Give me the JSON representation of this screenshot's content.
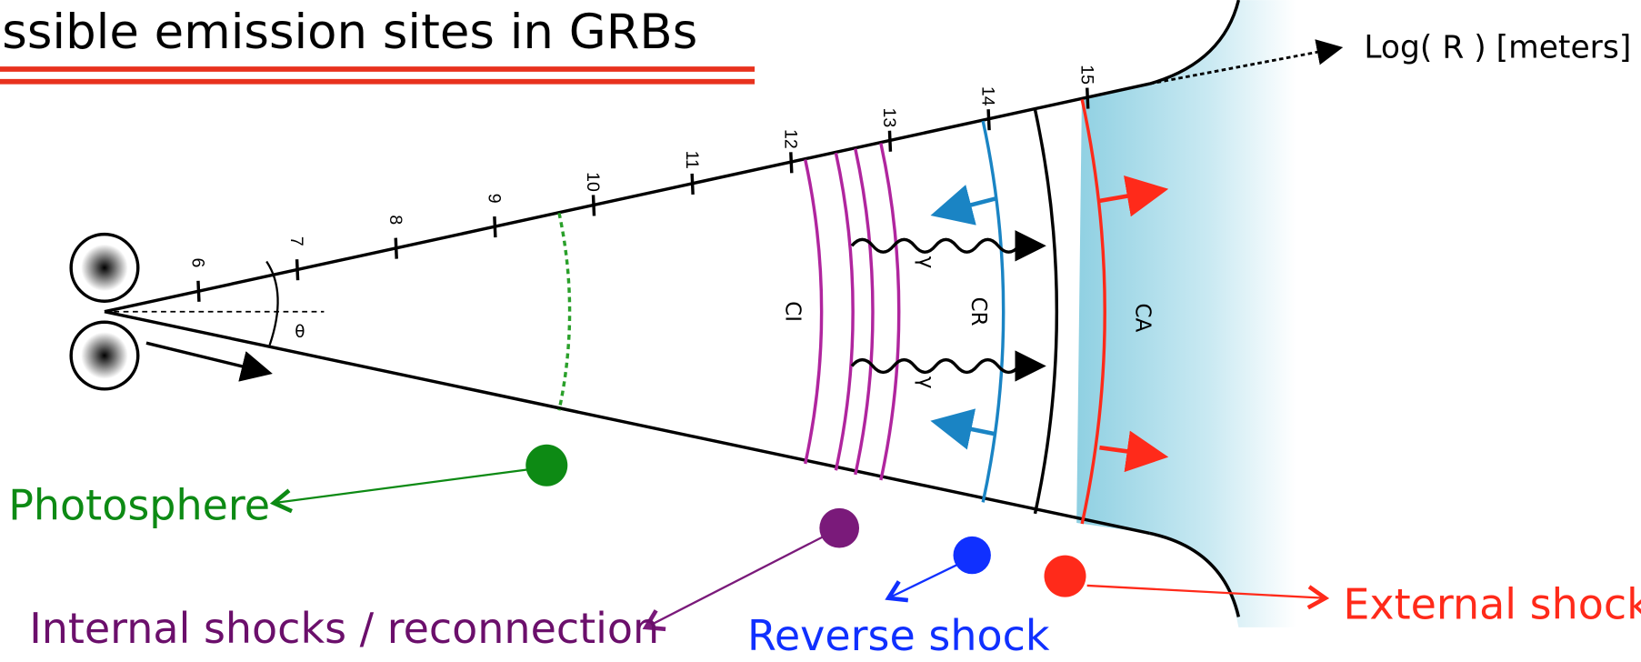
{
  "header": {
    "title": "ssible emission sites in GRBs"
  },
  "axis": {
    "label": "Log( R ) [meters]",
    "ticks": [
      "6",
      "7",
      "8",
      "9",
      "10",
      "11",
      "12",
      "13",
      "14",
      "15"
    ]
  },
  "diagram": {
    "angle": "θ",
    "regions": [
      "CI",
      "CR",
      "CA"
    ],
    "photon": "γ"
  },
  "sites": [
    "Photosphere",
    "Internal  shocks / reconnection",
    "Reverse shock",
    "External shock"
  ]
}
